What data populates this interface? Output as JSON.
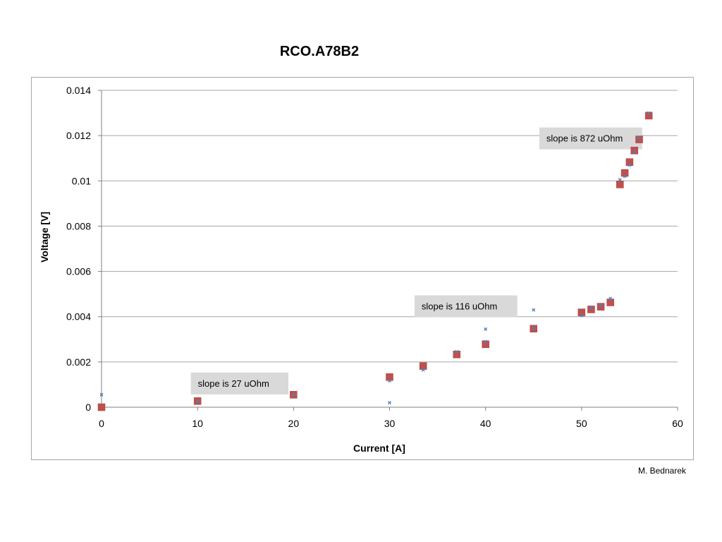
{
  "chart_data": {
    "type": "scatter",
    "title": "RCO.A78B2",
    "xlabel": "Current [A]",
    "ylabel": "Voltage [V]",
    "xlim": [
      0,
      60
    ],
    "ylim": [
      0,
      0.014
    ],
    "x_ticks": [
      "0",
      "10",
      "20",
      "30",
      "40",
      "50",
      "60"
    ],
    "y_ticks": [
      "0",
      "0.002",
      "0.004",
      "0.006",
      "0.008",
      "0.01",
      "0.012",
      "0.014"
    ],
    "grid": "horizontal",
    "legend": "none",
    "colors": {
      "measured": "#c0504d",
      "fit": "#4f81bd",
      "gridline": "#a6a6a6",
      "annotation_bg": "#d9d9d9"
    },
    "series": [
      {
        "marker": "square",
        "points": [
          [
            0,
            0.0
          ],
          [
            10,
            0.00027
          ],
          [
            20,
            0.00055
          ],
          [
            30,
            0.00133
          ],
          [
            33.5,
            0.00182
          ],
          [
            37,
            0.00233
          ],
          [
            40,
            0.00278
          ],
          [
            45,
            0.00347
          ],
          [
            50,
            0.00419
          ],
          [
            51,
            0.00432
          ],
          [
            52,
            0.00444
          ],
          [
            53,
            0.00463
          ],
          [
            54,
            0.00984
          ],
          [
            54.5,
            0.01035
          ],
          [
            55,
            0.01083
          ],
          [
            55.5,
            0.01134
          ],
          [
            56,
            0.01183
          ],
          [
            57,
            0.01288
          ]
        ]
      },
      {
        "marker": "cross",
        "points": [
          [
            0,
            0.00055
          ],
          [
            10,
            0.00027
          ],
          [
            20,
            0.00055
          ],
          [
            30,
            0.0002
          ],
          [
            30,
            0.00117
          ],
          [
            33.5,
            0.00165
          ],
          [
            37,
            0.00245
          ],
          [
            40,
            0.00345
          ],
          [
            40,
            0.0029
          ],
          [
            45,
            0.0043
          ],
          [
            45,
            0.0035
          ],
          [
            50,
            0.00405
          ],
          [
            51,
            0.00438
          ],
          [
            52,
            0.0045
          ],
          [
            53,
            0.0048
          ],
          [
            54,
            0.01005
          ],
          [
            54.5,
            0.0102
          ],
          [
            55,
            0.0107
          ],
          [
            55.5,
            0.0113
          ],
          [
            56,
            0.0119
          ],
          [
            57,
            0.013
          ]
        ]
      }
    ],
    "annotations": [
      {
        "text": "slope is 27 uOhm",
        "x": 9.3,
        "y": 0.00153
      },
      {
        "text": "slope is 116 uOhm",
        "x": 32.6,
        "y": 0.00494
      },
      {
        "text": "slope is 872 uOhm",
        "x": 45.6,
        "y": 0.01236
      }
    ]
  },
  "credit": "M. Bednarek"
}
